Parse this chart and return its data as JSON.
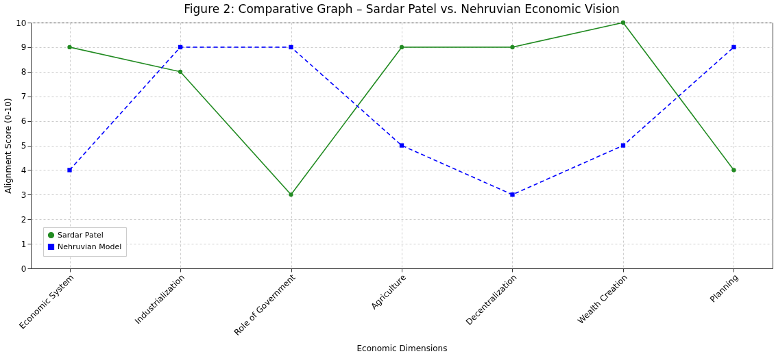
{
  "chart_data": {
    "type": "line",
    "title": "Figure 2: Comparative Graph – Sardar Patel vs. Nehruvian Economic Vision",
    "xlabel": "Economic Dimensions",
    "ylabel": "Alignment Score (0-10)",
    "categories": [
      "Economic System",
      "Industrialization",
      "Role of Government",
      "Agriculture",
      "Decentralization",
      "Wealth Creation",
      "Planning"
    ],
    "series": [
      {
        "name": "Sardar Patel",
        "color": "#228b22",
        "values": [
          9,
          8,
          3,
          9,
          9,
          10,
          4
        ],
        "marker": "circle",
        "line_style": "solid"
      },
      {
        "name": "Nehruvian Model",
        "color": "#0000ff",
        "values": [
          4,
          9,
          9,
          5,
          3,
          5,
          9
        ],
        "marker": "square",
        "line_style": "dashed"
      }
    ],
    "ylim": [
      0,
      10
    ],
    "yticks": [
      0,
      1,
      2,
      3,
      4,
      5,
      6,
      7,
      8,
      9,
      10
    ],
    "grid": true,
    "legend": "bottom left"
  }
}
